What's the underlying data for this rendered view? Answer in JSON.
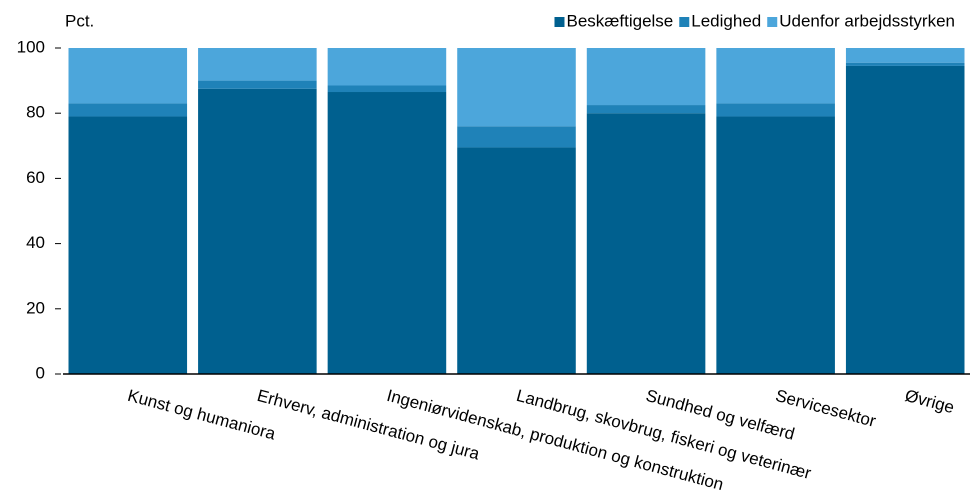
{
  "chart_data": {
    "type": "stacked_bar",
    "y_label": "Pct.",
    "categories": [
      "Kunst og humaniora",
      "Erhverv, administration og jura",
      "Ingeniørvidenskab, produktion og konstruktion",
      "Landbrug, skovbrug, fiskeri og veterinær",
      "Sundhed og velfærd",
      "Servicesektor",
      "Øvrige"
    ],
    "series": [
      {
        "name": "Beskæftigelse",
        "color": "#00608f",
        "values": [
          79,
          87.5,
          86.5,
          69.5,
          80,
          79,
          94.5
        ]
      },
      {
        "name": "Ledighed",
        "color": "#1f82b8",
        "values": [
          4,
          2.5,
          2,
          6.5,
          2.5,
          4,
          1
        ]
      },
      {
        "name": "Udenfor arbejdsstyrken",
        "color": "#4ca6db",
        "values": [
          17,
          10,
          11.5,
          24,
          17.5,
          17,
          4.5
        ]
      }
    ],
    "ylim": [
      0,
      100
    ],
    "yticks": [
      0,
      20,
      40,
      60,
      80,
      100
    ],
    "legend": "top-right"
  }
}
